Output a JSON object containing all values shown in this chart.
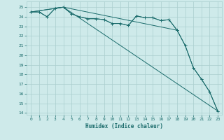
{
  "background_color": "#ceeaea",
  "grid_color": "#aacece",
  "line_color": "#1a6b6b",
  "xlabel": "Humidex (Indice chaleur)",
  "xlim": [
    -0.5,
    23.5
  ],
  "ylim": [
    13.8,
    25.6
  ],
  "yticks": [
    14,
    15,
    16,
    17,
    18,
    19,
    20,
    21,
    22,
    23,
    24,
    25
  ],
  "xticks": [
    0,
    1,
    2,
    3,
    4,
    5,
    6,
    7,
    8,
    9,
    10,
    11,
    12,
    13,
    14,
    15,
    16,
    17,
    18,
    19,
    20,
    21,
    22,
    23
  ],
  "series1_x": [
    0,
    1,
    2,
    3,
    4,
    5,
    6,
    7,
    8,
    9,
    10,
    11,
    12,
    13,
    14,
    15,
    16,
    17,
    18
  ],
  "series1_y": [
    24.5,
    24.5,
    24.0,
    24.9,
    25.0,
    24.3,
    24.0,
    23.8,
    23.8,
    23.7,
    23.3,
    23.3,
    23.1,
    24.1,
    23.9,
    23.9,
    23.6,
    23.7,
    22.6
  ],
  "series2_x": [
    0,
    1,
    2,
    3,
    4,
    5,
    6,
    7,
    8,
    9,
    10,
    11,
    12,
    13,
    14,
    15,
    16,
    17,
    18,
    19,
    20,
    21,
    22,
    23
  ],
  "series2_y": [
    24.5,
    24.5,
    24.0,
    24.9,
    25.0,
    24.3,
    24.0,
    23.8,
    23.8,
    23.7,
    23.3,
    23.3,
    23.1,
    24.1,
    23.9,
    23.9,
    23.6,
    23.7,
    22.6,
    21.0,
    18.7,
    17.5,
    16.2,
    14.2
  ],
  "series3_x": [
    0,
    4,
    23
  ],
  "series3_y": [
    24.5,
    25.0,
    14.2
  ],
  "series4_x": [
    0,
    4,
    18,
    19,
    20,
    21,
    22,
    23
  ],
  "series4_y": [
    24.5,
    25.0,
    22.6,
    21.0,
    18.7,
    17.5,
    16.2,
    14.2
  ]
}
